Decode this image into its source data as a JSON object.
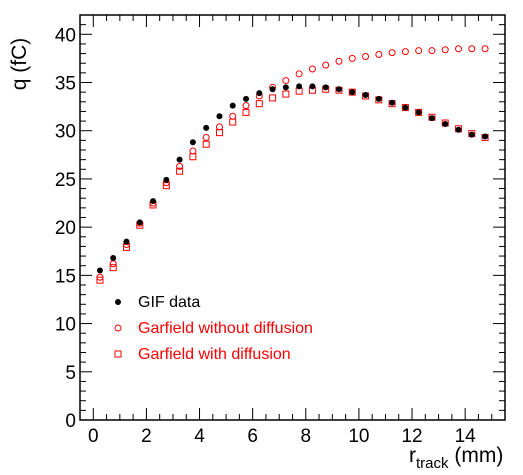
{
  "chart_data": {
    "type": "scatter",
    "xlabel": {
      "main": "r",
      "sub": "track",
      "unit": " (mm)"
    },
    "ylabel": "q (fC)",
    "xlim": [
      -0.5,
      15.5
    ],
    "ylim": [
      0,
      42
    ],
    "x_ticks": [
      0,
      2,
      4,
      6,
      8,
      10,
      12,
      14
    ],
    "y_ticks": [
      0,
      5,
      10,
      15,
      20,
      25,
      30,
      35,
      40
    ],
    "grid": false,
    "legend_position": "bottom-left",
    "series": [
      {
        "name": "GIF data",
        "marker": "filled-circle",
        "color": "#000000",
        "x": [
          0.25,
          0.75,
          1.25,
          1.75,
          2.25,
          2.75,
          3.25,
          3.75,
          4.25,
          4.75,
          5.25,
          5.75,
          6.25,
          6.75,
          7.25,
          7.75,
          8.25,
          8.75,
          9.25,
          9.75,
          10.25,
          10.75,
          11.25,
          11.75,
          12.25,
          12.75,
          13.25,
          13.75,
          14.25,
          14.75
        ],
        "values": [
          15.5,
          16.8,
          18.5,
          20.5,
          22.7,
          24.9,
          27.0,
          28.8,
          30.3,
          31.5,
          32.6,
          33.3,
          33.9,
          34.3,
          34.5,
          34.6,
          34.6,
          34.5,
          34.3,
          34.0,
          33.7,
          33.3,
          32.9,
          32.4,
          31.9,
          31.3,
          30.7,
          30.1,
          29.6,
          29.4
        ]
      },
      {
        "name": "Garfield without diffusion",
        "marker": "open-circle",
        "color": "#ff0000",
        "x": [
          0.25,
          0.75,
          1.25,
          1.75,
          2.25,
          2.75,
          3.25,
          3.75,
          4.25,
          4.75,
          5.25,
          5.75,
          6.25,
          6.75,
          7.25,
          7.75,
          8.25,
          8.75,
          9.25,
          9.75,
          10.25,
          10.75,
          11.25,
          11.75,
          12.25,
          12.75,
          13.25,
          13.75,
          14.25,
          14.75
        ],
        "values": [
          14.8,
          16.2,
          18.2,
          20.4,
          22.5,
          24.6,
          26.3,
          27.9,
          29.3,
          30.4,
          31.5,
          32.6,
          33.6,
          34.5,
          35.2,
          35.9,
          36.4,
          36.8,
          37.2,
          37.5,
          37.7,
          37.9,
          38.1,
          38.2,
          38.3,
          38.3,
          38.4,
          38.5,
          38.5,
          38.5
        ]
      },
      {
        "name": "Garfield with diffusion",
        "marker": "open-square",
        "color": "#ff0000",
        "x": [
          0.25,
          0.75,
          1.25,
          1.75,
          2.25,
          2.75,
          3.25,
          3.75,
          4.25,
          4.75,
          5.25,
          5.75,
          6.25,
          6.75,
          7.25,
          7.75,
          8.25,
          8.75,
          9.25,
          9.75,
          10.25,
          10.75,
          11.25,
          11.75,
          12.25,
          12.75,
          13.25,
          13.75,
          14.25,
          14.75
        ],
        "values": [
          14.5,
          15.8,
          17.9,
          20.2,
          22.3,
          24.3,
          25.8,
          27.3,
          28.6,
          29.8,
          30.9,
          31.9,
          32.8,
          33.4,
          33.8,
          34.1,
          34.2,
          34.3,
          34.2,
          34.0,
          33.6,
          33.2,
          32.8,
          32.4,
          31.9,
          31.4,
          30.8,
          30.2,
          29.7,
          29.3
        ]
      }
    ]
  }
}
